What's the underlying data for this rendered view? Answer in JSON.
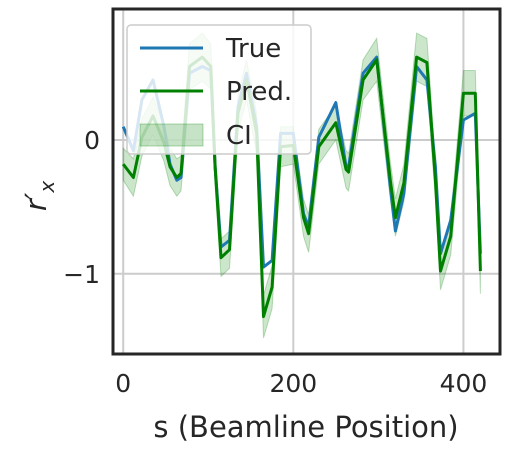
{
  "chart_data": {
    "type": "line",
    "xlabel": "s (Beamline Position)",
    "ylabel": "r′",
    "ylabel_sub": "x",
    "xlim": [
      -12,
      443
    ],
    "ylim": [
      -1.6,
      0.98
    ],
    "xticks": [
      0,
      200,
      400
    ],
    "yticks": [
      0,
      -1
    ],
    "xtick_labels": [
      "0",
      "200",
      "400"
    ],
    "ytick_labels": [
      "0",
      "−1"
    ],
    "grid": true,
    "legend_placement": "top-left",
    "series": [
      {
        "name": "True",
        "color": "#1f77b4",
        "x": [
          0,
          12,
          22,
          35,
          48,
          55,
          63,
          68,
          78,
          93,
          103,
          108,
          115,
          125,
          135,
          145,
          157,
          165,
          175,
          185,
          200,
          212,
          218,
          230,
          250,
          262,
          265,
          282,
          298,
          314,
          320,
          330,
          345,
          357,
          367,
          373,
          385,
          400,
          414,
          420
        ],
        "y": [
          0.1,
          -0.08,
          0.3,
          0.45,
          0.1,
          -0.18,
          -0.3,
          -0.28,
          0.5,
          0.55,
          0.52,
          -0.2,
          -0.8,
          -0.75,
          0.25,
          0.5,
          0.1,
          -0.95,
          -0.9,
          0.05,
          0.05,
          -0.55,
          -0.65,
          0.02,
          0.28,
          -0.2,
          -0.2,
          0.5,
          0.62,
          -0.35,
          -0.68,
          -0.4,
          0.55,
          0.45,
          -0.2,
          -0.85,
          -0.6,
          0.15,
          0.2,
          -0.85
        ]
      },
      {
        "name": "Pred.",
        "color": "#008000",
        "x": [
          0,
          12,
          22,
          35,
          48,
          55,
          63,
          68,
          78,
          93,
          103,
          108,
          115,
          125,
          135,
          145,
          157,
          165,
          175,
          185,
          200,
          212,
          218,
          230,
          250,
          262,
          265,
          282,
          298,
          314,
          320,
          330,
          345,
          357,
          367,
          373,
          385,
          400,
          414,
          420
        ],
        "y": [
          -0.18,
          -0.28,
          0.02,
          0.18,
          -0.02,
          -0.2,
          -0.28,
          -0.25,
          0.55,
          0.62,
          0.55,
          -0.2,
          -0.88,
          -0.82,
          0.2,
          0.45,
          0.05,
          -1.32,
          -1.1,
          -0.05,
          -0.04,
          -0.58,
          -0.7,
          -0.05,
          0.13,
          -0.22,
          -0.24,
          0.45,
          0.6,
          -0.3,
          -0.58,
          -0.32,
          0.62,
          0.58,
          -0.3,
          -0.98,
          -0.72,
          0.35,
          0.35,
          -0.98
        ]
      },
      {
        "name": "CI",
        "color": "#008000",
        "x": [
          0,
          12,
          22,
          35,
          48,
          55,
          63,
          68,
          78,
          93,
          103,
          108,
          115,
          125,
          135,
          145,
          157,
          165,
          175,
          185,
          200,
          212,
          218,
          230,
          250,
          262,
          265,
          282,
          298,
          314,
          320,
          330,
          345,
          357,
          367,
          373,
          385,
          400,
          414,
          420
        ],
        "lower": [
          -0.3,
          -0.42,
          -0.12,
          0.04,
          -0.16,
          -0.34,
          -0.42,
          -0.38,
          0.38,
          0.44,
          0.38,
          -0.34,
          -1.02,
          -0.96,
          0.06,
          0.3,
          -0.1,
          -1.48,
          -1.26,
          -0.2,
          -0.18,
          -0.72,
          -0.84,
          -0.18,
          0.0,
          -0.36,
          -0.38,
          0.3,
          0.44,
          -0.44,
          -0.72,
          -0.46,
          0.44,
          0.4,
          -0.44,
          -1.12,
          -0.86,
          0.18,
          0.18,
          -1.15
        ],
        "upper": [
          -0.06,
          -0.14,
          0.16,
          0.32,
          0.12,
          -0.06,
          -0.14,
          -0.12,
          0.72,
          0.8,
          0.72,
          -0.06,
          -0.74,
          -0.68,
          0.34,
          0.6,
          0.2,
          -1.16,
          -0.94,
          0.1,
          0.1,
          -0.44,
          -0.56,
          0.08,
          0.26,
          -0.08,
          -0.1,
          0.6,
          0.76,
          -0.16,
          -0.44,
          -0.18,
          0.8,
          0.76,
          -0.16,
          -0.84,
          -0.58,
          0.52,
          0.52,
          -0.8
        ]
      }
    ]
  }
}
